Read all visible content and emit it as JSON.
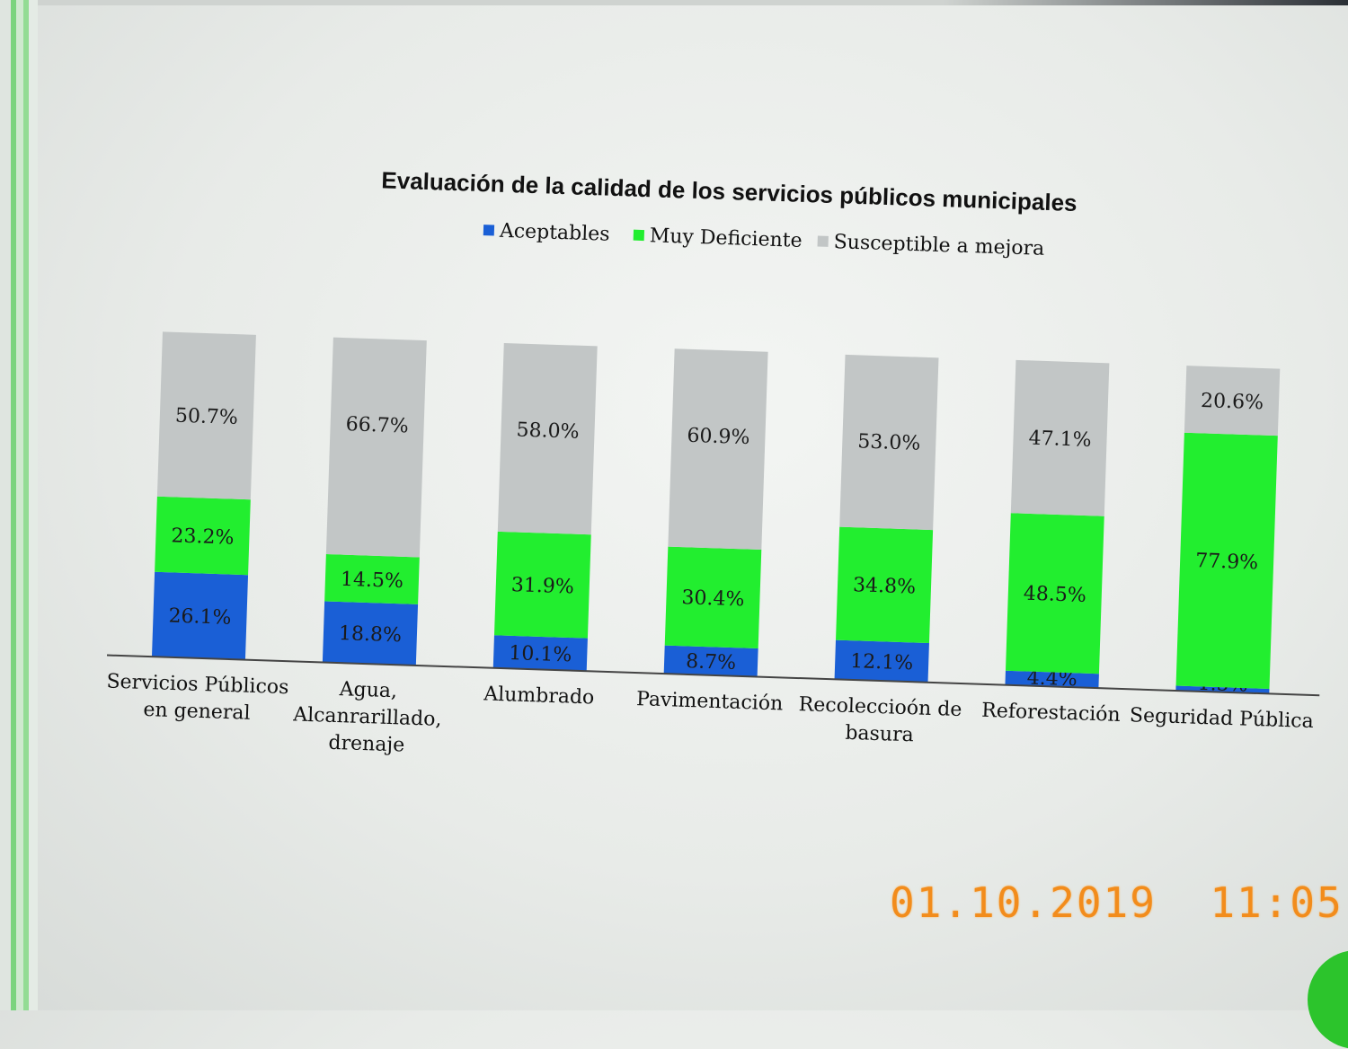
{
  "timestamp": "01.10.2019  11:05",
  "chart_data": {
    "type": "bar",
    "stacked": true,
    "title": "Evaluación de la calidad de los servicios públicos municipales",
    "legend_position": "top",
    "grid": false,
    "categories": [
      [
        "Servicios Públicos",
        "en general"
      ],
      [
        "Agua,",
        "Alcanrarillado,",
        "drenaje"
      ],
      [
        "Alumbrado"
      ],
      [
        "Pavimentación"
      ],
      [
        "Recolecciоón de",
        "basura"
      ],
      [
        "Reforestación"
      ],
      [
        "Seguridad Pública"
      ]
    ],
    "series": [
      {
        "name": "Aceptables",
        "color": "#1a5fd6",
        "values": [
          26.1,
          18.8,
          10.1,
          8.7,
          12.1,
          4.4,
          1.5
        ],
        "labels": [
          "26.1%",
          "18.8%",
          "10.1%",
          "8.7%",
          "12.1%",
          "4.4%",
          "1.5%"
        ]
      },
      {
        "name": "Muy Deficiente",
        "color": "#22ee2f",
        "values": [
          23.2,
          14.5,
          31.9,
          30.4,
          34.8,
          48.5,
          77.9
        ],
        "labels": [
          "23.2%",
          "14.5%",
          "31.9%",
          "30.4%",
          "34.8%",
          "48.5%",
          "77.9%"
        ]
      },
      {
        "name": "Susceptible a mejora",
        "color": "#c2c6c6",
        "values": [
          50.7,
          66.7,
          58.0,
          60.9,
          53.0,
          47.1,
          20.6
        ],
        "labels": [
          "50.7%",
          "66.7%",
          "58.0%",
          "60.9%",
          "53.0%",
          "47.1%",
          "20.6%"
        ]
      }
    ],
    "ylim": [
      0,
      100
    ]
  }
}
